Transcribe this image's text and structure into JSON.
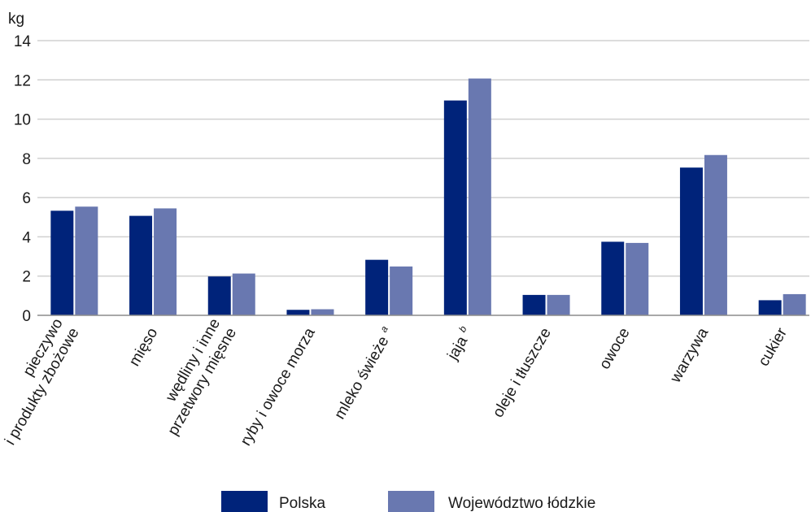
{
  "chart_data": {
    "type": "bar",
    "ylabel": "kg",
    "ylim": [
      0,
      14
    ],
    "yticks": [
      0,
      2,
      4,
      6,
      8,
      10,
      12,
      14
    ],
    "grid": true,
    "legend_position": "bottom",
    "categories": [
      {
        "lines": [
          "pieczywo",
          "i produkty zbożowe"
        ],
        "sup": ""
      },
      {
        "lines": [
          "mięso"
        ],
        "sup": ""
      },
      {
        "lines": [
          "wędliny i inne",
          "przetwory mięsne"
        ],
        "sup": ""
      },
      {
        "lines": [
          "ryby i owoce morza"
        ],
        "sup": ""
      },
      {
        "lines": [
          "mleko świeże"
        ],
        "sup": "a"
      },
      {
        "lines": [
          "jaja"
        ],
        "sup": "b"
      },
      {
        "lines": [
          "oleje i tłuszcze"
        ],
        "sup": ""
      },
      {
        "lines": [
          "owoce"
        ],
        "sup": ""
      },
      {
        "lines": [
          "warzywa"
        ],
        "sup": ""
      },
      {
        "lines": [
          "cukier"
        ],
        "sup": ""
      }
    ],
    "series": [
      {
        "name": "Polska",
        "color": "#00237a",
        "values": [
          5.33,
          5.07,
          1.98,
          0.28,
          2.83,
          10.95,
          1.04,
          3.75,
          7.53,
          0.77
        ]
      },
      {
        "name": "Województwo łódzkie",
        "color": "#6978b0",
        "values": [
          5.54,
          5.45,
          2.13,
          0.31,
          2.49,
          12.07,
          1.04,
          3.69,
          8.17,
          1.08
        ]
      }
    ]
  }
}
